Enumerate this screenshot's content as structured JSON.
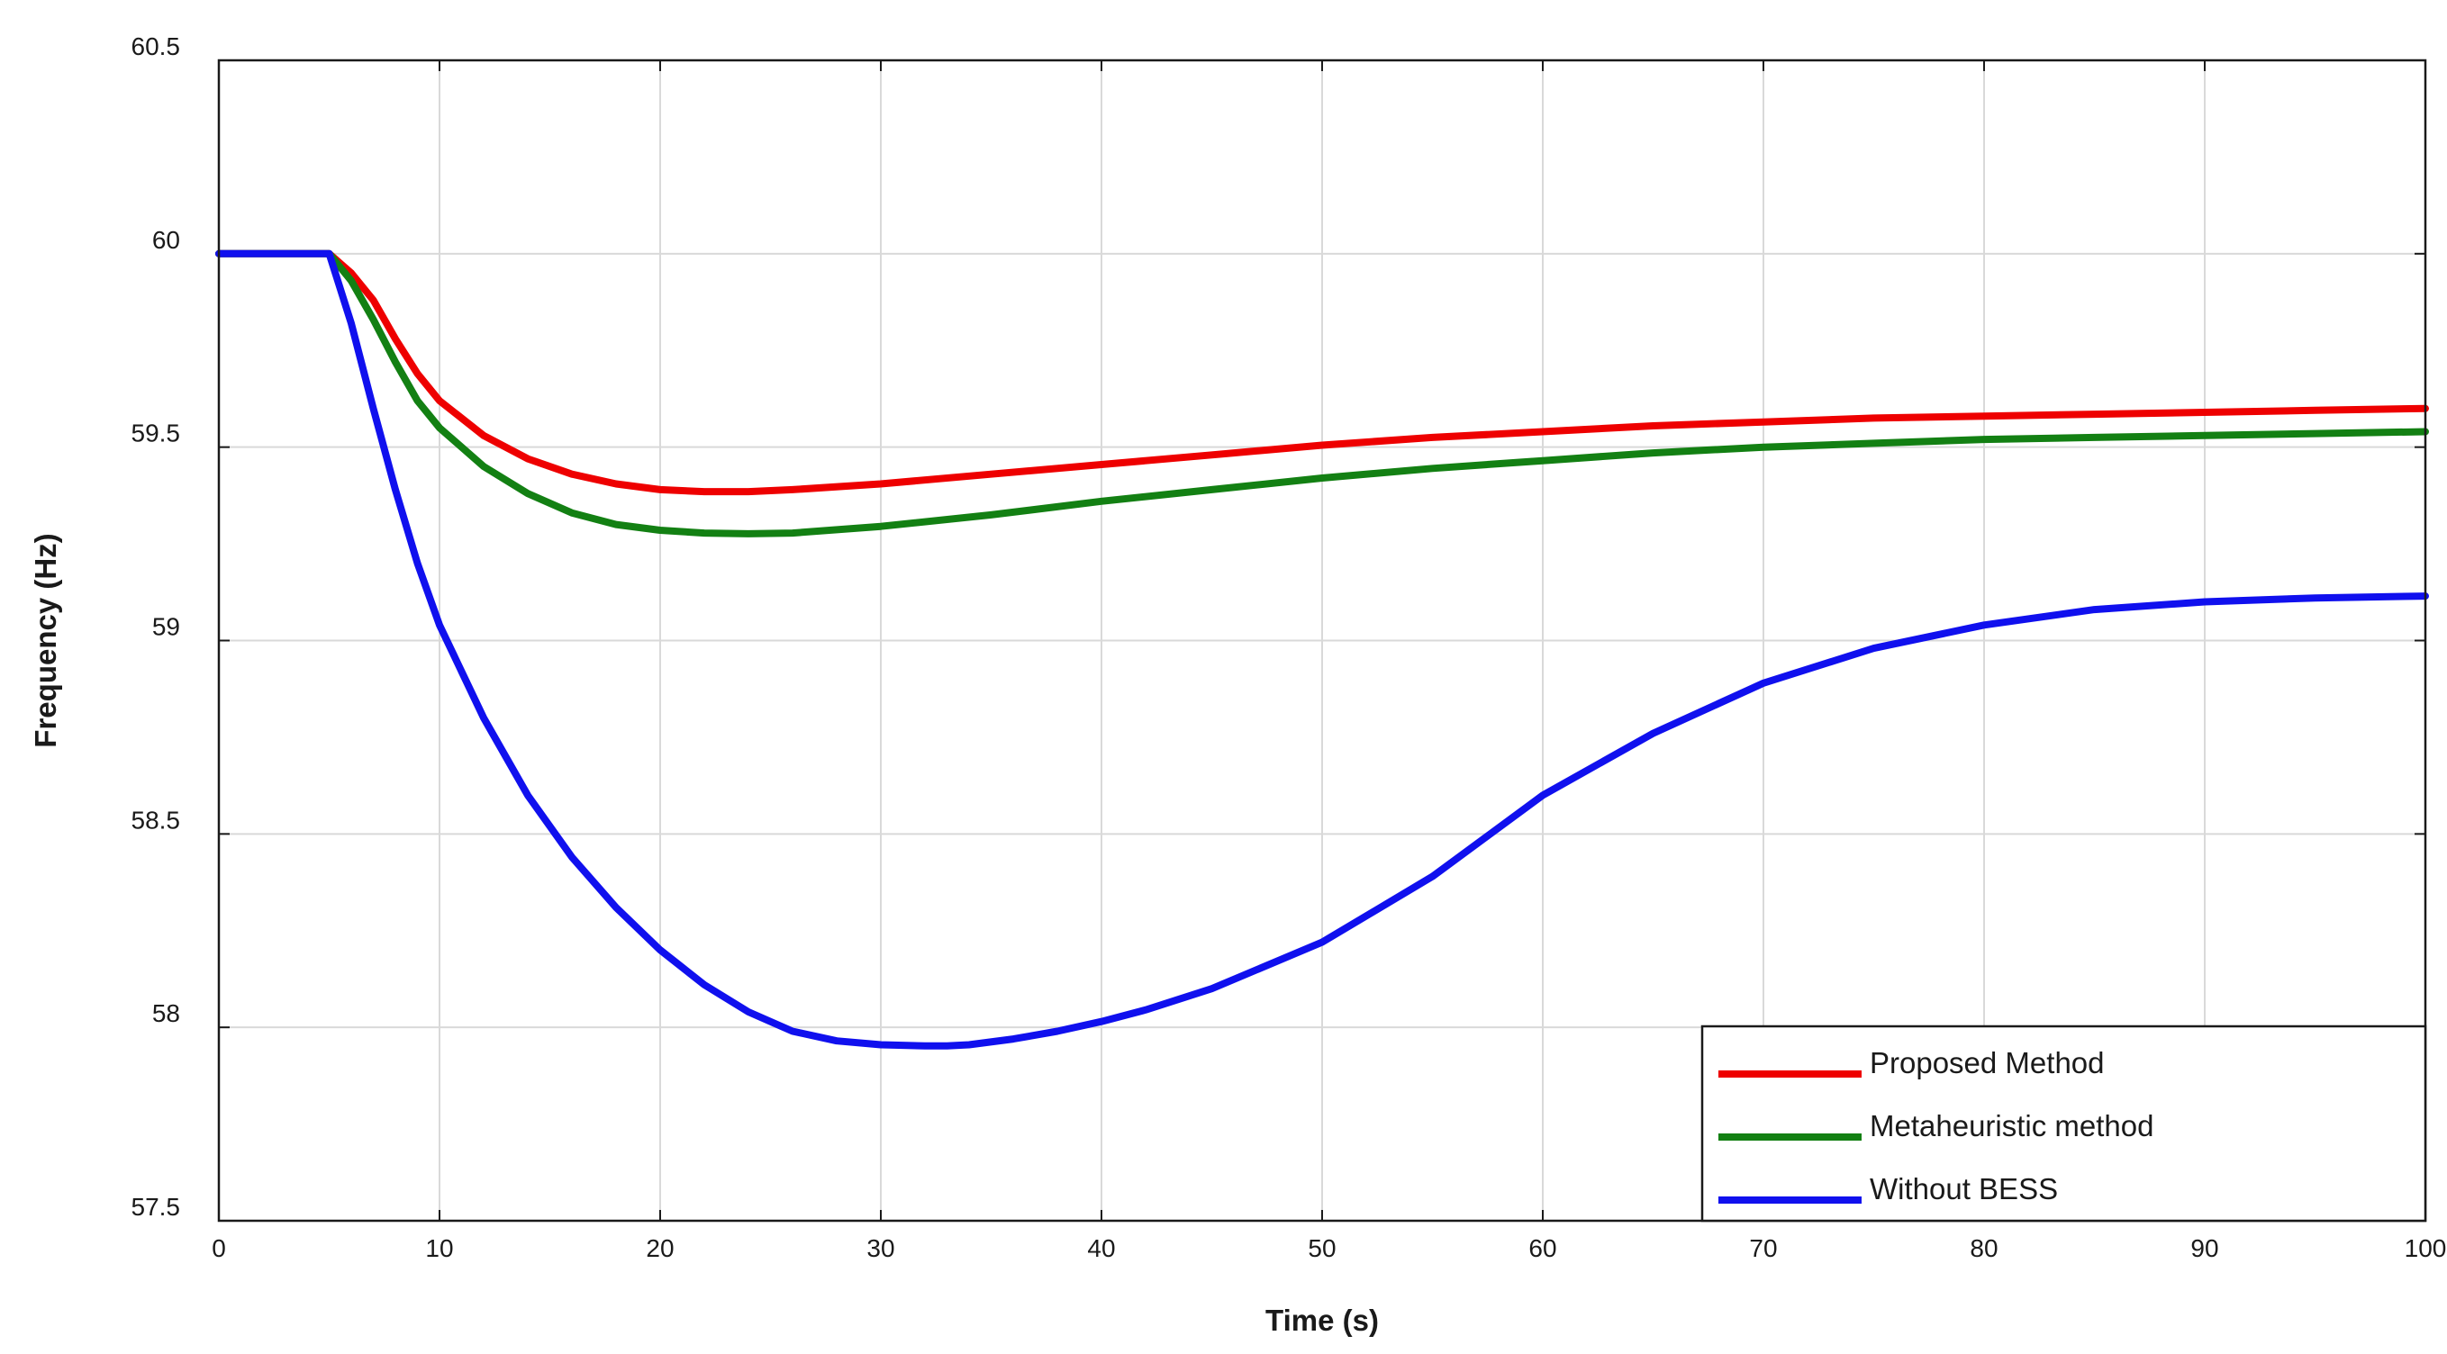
{
  "chart_data": {
    "type": "line",
    "title": "",
    "xlabel": "Time (s)",
    "ylabel": "Frequency (Hz)",
    "xlim": [
      0,
      100
    ],
    "ylim": [
      57.5,
      60.5
    ],
    "xticks": [
      0,
      10,
      20,
      30,
      40,
      50,
      60,
      70,
      80,
      90,
      100
    ],
    "yticks": [
      57.5,
      58,
      58.5,
      59,
      59.5,
      60,
      60.5
    ],
    "xtick_labels": [
      "0",
      "10",
      "20",
      "30",
      "40",
      "50",
      "60",
      "70",
      "80",
      "90",
      "100"
    ],
    "ytick_labels": [
      "57.5",
      "58",
      "58.5",
      "59",
      "59.5",
      "60",
      "60.5"
    ],
    "grid": true,
    "legend_position": "bottom-right",
    "series": [
      {
        "name": "Proposed Method",
        "color": "#ee0000",
        "x": [
          0,
          5,
          6,
          7,
          8,
          9,
          10,
          12,
          14,
          16,
          18,
          20,
          22,
          24,
          26,
          30,
          35,
          40,
          45,
          50,
          55,
          60,
          65,
          70,
          75,
          80,
          85,
          90,
          95,
          100
        ],
        "y": [
          60,
          60,
          59.95,
          59.88,
          59.78,
          59.69,
          59.62,
          59.53,
          59.47,
          59.43,
          59.405,
          59.39,
          59.385,
          59.385,
          59.39,
          59.405,
          59.43,
          59.455,
          59.48,
          59.505,
          59.525,
          59.54,
          59.555,
          59.565,
          59.575,
          59.58,
          59.585,
          59.59,
          59.595,
          59.6
        ]
      },
      {
        "name": "Metaheuristic method",
        "color": "#138013",
        "x": [
          0,
          5,
          6,
          7,
          8,
          9,
          10,
          12,
          14,
          16,
          18,
          20,
          22,
          24,
          26,
          30,
          35,
          40,
          45,
          50,
          55,
          60,
          65,
          70,
          75,
          80,
          85,
          90,
          95,
          100
        ],
        "y": [
          60,
          60,
          59.93,
          59.83,
          59.72,
          59.62,
          59.55,
          59.45,
          59.38,
          59.33,
          59.3,
          59.285,
          59.278,
          59.276,
          59.278,
          59.295,
          59.325,
          59.36,
          59.39,
          59.42,
          59.445,
          59.465,
          59.485,
          59.5,
          59.51,
          59.52,
          59.525,
          59.53,
          59.535,
          59.54
        ]
      },
      {
        "name": "Without BESS",
        "color": "#1010ee",
        "x": [
          0,
          5,
          6,
          7,
          8,
          9,
          10,
          12,
          14,
          16,
          18,
          20,
          22,
          24,
          26,
          28,
          30,
          32,
          33,
          34,
          36,
          38,
          40,
          42,
          45,
          50,
          55,
          60,
          65,
          70,
          75,
          80,
          85,
          90,
          95,
          100
        ],
        "y": [
          60,
          60,
          59.82,
          59.6,
          59.39,
          59.2,
          59.04,
          58.8,
          58.6,
          58.44,
          58.31,
          58.2,
          58.11,
          58.04,
          57.99,
          57.965,
          57.955,
          57.952,
          57.952,
          57.955,
          57.97,
          57.99,
          58.015,
          58.045,
          58.1,
          58.22,
          58.39,
          58.6,
          58.76,
          58.89,
          58.98,
          59.04,
          59.08,
          59.1,
          59.11,
          59.115
        ]
      }
    ]
  }
}
